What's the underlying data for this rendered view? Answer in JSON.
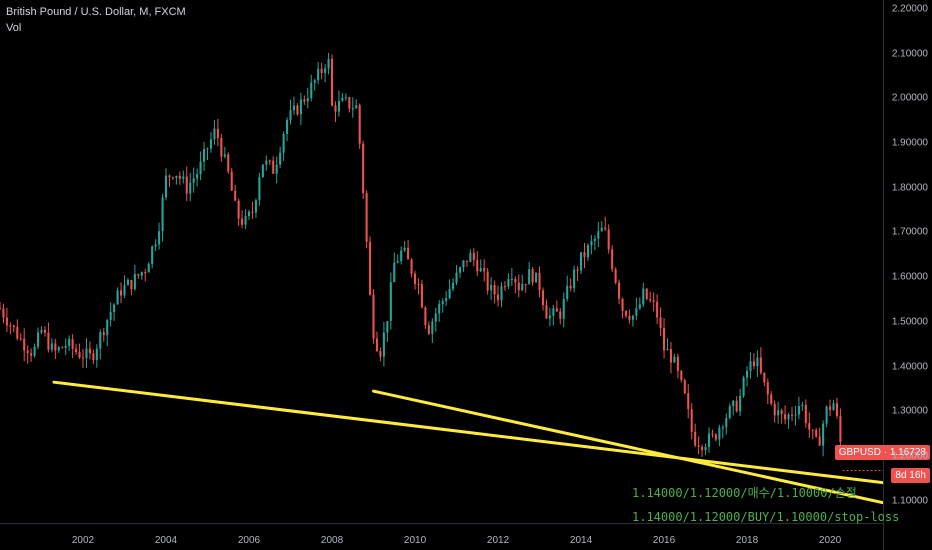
{
  "header": {
    "symbol_line": "British Pound / U.S. Dollar, M, FXCM",
    "volume_label": "Vol"
  },
  "chart_data": {
    "type": "candlestick",
    "symbol": "GBPUSD",
    "interval": "M",
    "ylim": [
      1.05,
      2.22
    ],
    "y_ticks": [
      "2.20000",
      "2.10000",
      "2.00000",
      "1.90000",
      "1.80000",
      "1.70000",
      "1.60000",
      "1.50000",
      "1.40000",
      "1.30000",
      "1.20000",
      "1.10000"
    ],
    "x_range": [
      2000.0,
      2021.3
    ],
    "x_ticks": [
      "2002",
      "2004",
      "2006",
      "2008",
      "2010",
      "2012",
      "2014",
      "2016",
      "2018",
      "2020"
    ],
    "price_path": [
      [
        2000.0,
        1.53
      ],
      [
        2000.5,
        1.46
      ],
      [
        2000.8,
        1.43
      ],
      [
        2001.0,
        1.48
      ],
      [
        2001.3,
        1.43
      ],
      [
        2001.6,
        1.45
      ],
      [
        2001.9,
        1.43
      ],
      [
        2002.2,
        1.42
      ],
      [
        2002.6,
        1.51
      ],
      [
        2002.9,
        1.57
      ],
      [
        2003.2,
        1.59
      ],
      [
        2003.5,
        1.62
      ],
      [
        2003.8,
        1.7
      ],
      [
        2004.0,
        1.82
      ],
      [
        2004.2,
        1.84
      ],
      [
        2004.5,
        1.8
      ],
      [
        2004.8,
        1.84
      ],
      [
        2005.0,
        1.89
      ],
      [
        2005.2,
        1.93
      ],
      [
        2005.5,
        1.83
      ],
      [
        2005.7,
        1.74
      ],
      [
        2005.9,
        1.72
      ],
      [
        2006.1,
        1.75
      ],
      [
        2006.3,
        1.86
      ],
      [
        2006.6,
        1.84
      ],
      [
        2006.9,
        1.95
      ],
      [
        2007.1,
        1.97
      ],
      [
        2007.4,
        2.01
      ],
      [
        2007.6,
        2.04
      ],
      [
        2007.8,
        2.07
      ],
      [
        2007.9,
        2.1
      ],
      [
        2008.0,
        1.98
      ],
      [
        2008.3,
        1.99
      ],
      [
        2008.6,
        1.98
      ],
      [
        2008.7,
        1.86
      ],
      [
        2008.8,
        1.73
      ],
      [
        2008.9,
        1.57
      ],
      [
        2009.0,
        1.48
      ],
      [
        2009.15,
        1.43
      ],
      [
        2009.3,
        1.49
      ],
      [
        2009.5,
        1.63
      ],
      [
        2009.7,
        1.66
      ],
      [
        2009.9,
        1.62
      ],
      [
        2010.1,
        1.58
      ],
      [
        2010.3,
        1.48
      ],
      [
        2010.5,
        1.52
      ],
      [
        2010.8,
        1.57
      ],
      [
        2011.0,
        1.6
      ],
      [
        2011.3,
        1.65
      ],
      [
        2011.5,
        1.63
      ],
      [
        2011.8,
        1.57
      ],
      [
        2012.0,
        1.56
      ],
      [
        2012.3,
        1.62
      ],
      [
        2012.5,
        1.58
      ],
      [
        2012.8,
        1.61
      ],
      [
        2013.0,
        1.58
      ],
      [
        2013.2,
        1.51
      ],
      [
        2013.5,
        1.52
      ],
      [
        2013.8,
        1.6
      ],
      [
        2014.0,
        1.64
      ],
      [
        2014.3,
        1.68
      ],
      [
        2014.55,
        1.71
      ],
      [
        2014.8,
        1.61
      ],
      [
        2015.0,
        1.53
      ],
      [
        2015.3,
        1.51
      ],
      [
        2015.5,
        1.56
      ],
      [
        2015.8,
        1.53
      ],
      [
        2016.0,
        1.44
      ],
      [
        2016.2,
        1.42
      ],
      [
        2016.5,
        1.33
      ],
      [
        2016.7,
        1.24
      ],
      [
        2016.9,
        1.23
      ],
      [
        2017.2,
        1.24
      ],
      [
        2017.4,
        1.28
      ],
      [
        2017.6,
        1.3
      ],
      [
        2017.8,
        1.32
      ],
      [
        2018.0,
        1.39
      ],
      [
        2018.2,
        1.42
      ],
      [
        2018.4,
        1.36
      ],
      [
        2018.6,
        1.31
      ],
      [
        2018.9,
        1.28
      ],
      [
        2019.1,
        1.3
      ],
      [
        2019.3,
        1.32
      ],
      [
        2019.5,
        1.26
      ],
      [
        2019.7,
        1.22
      ],
      [
        2019.9,
        1.3
      ],
      [
        2020.1,
        1.32
      ],
      [
        2020.25,
        1.23
      ],
      [
        2020.3,
        1.167
      ]
    ],
    "trendlines": [
      {
        "color": "#ffeb3b",
        "from": [
          2001.3,
          1.365
        ],
        "to": [
          2021.3,
          1.14
        ]
      },
      {
        "color": "#ffeb3b",
        "from": [
          2009.0,
          1.345
        ],
        "to": [
          2021.3,
          1.095
        ]
      }
    ],
    "last_price": "1.16728",
    "countdown": "8d 16h",
    "annotations": [
      "1.14000/1.12000/매수/1.10000/손절",
      "1.14000/1.12000/BUY/1.10000/stop-loss"
    ],
    "colors": {
      "up": "#26a69a",
      "down": "#ef5350",
      "trend": "#ffeb3b",
      "annotation": "#4caf50"
    }
  }
}
